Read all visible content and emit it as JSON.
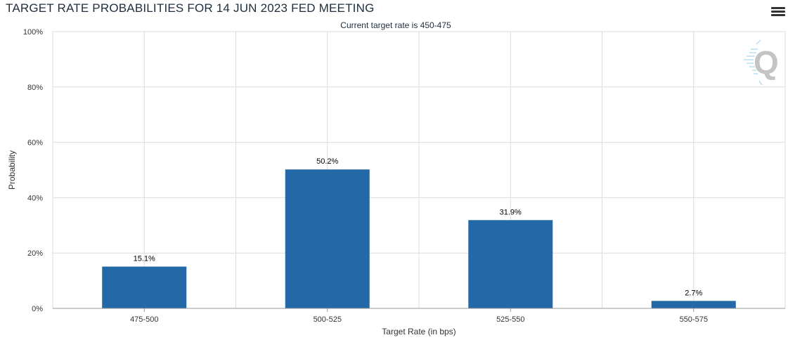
{
  "title": "TARGET RATE PROBABILITIES FOR 14 JUN 2023 FED MEETING",
  "menu_icon": "hamburger-menu-icon",
  "watermark_icon": "quikstrike-q-logo-icon",
  "colors": {
    "bar": "#2369a8",
    "grid": "#dcdcdc",
    "axis": "#999999"
  },
  "chart_data": {
    "type": "bar",
    "title": "TARGET RATE PROBABILITIES FOR 14 JUN 2023 FED MEETING",
    "subtitle": "Current target rate is 450-475",
    "categories": [
      "475-500",
      "500-525",
      "525-550",
      "550-575"
    ],
    "values": [
      15.1,
      50.2,
      31.9,
      2.7
    ],
    "value_labels": [
      "15.1%",
      "50.2%",
      "31.9%",
      "2.7%"
    ],
    "xlabel": "Target Rate (in bps)",
    "ylabel": "Probability",
    "ylim": [
      0,
      100
    ],
    "yticks": [
      0,
      20,
      40,
      60,
      80,
      100
    ],
    "ytick_labels": [
      "0%",
      "20%",
      "40%",
      "60%",
      "80%",
      "100%"
    ],
    "grid": true,
    "legend": "none"
  }
}
